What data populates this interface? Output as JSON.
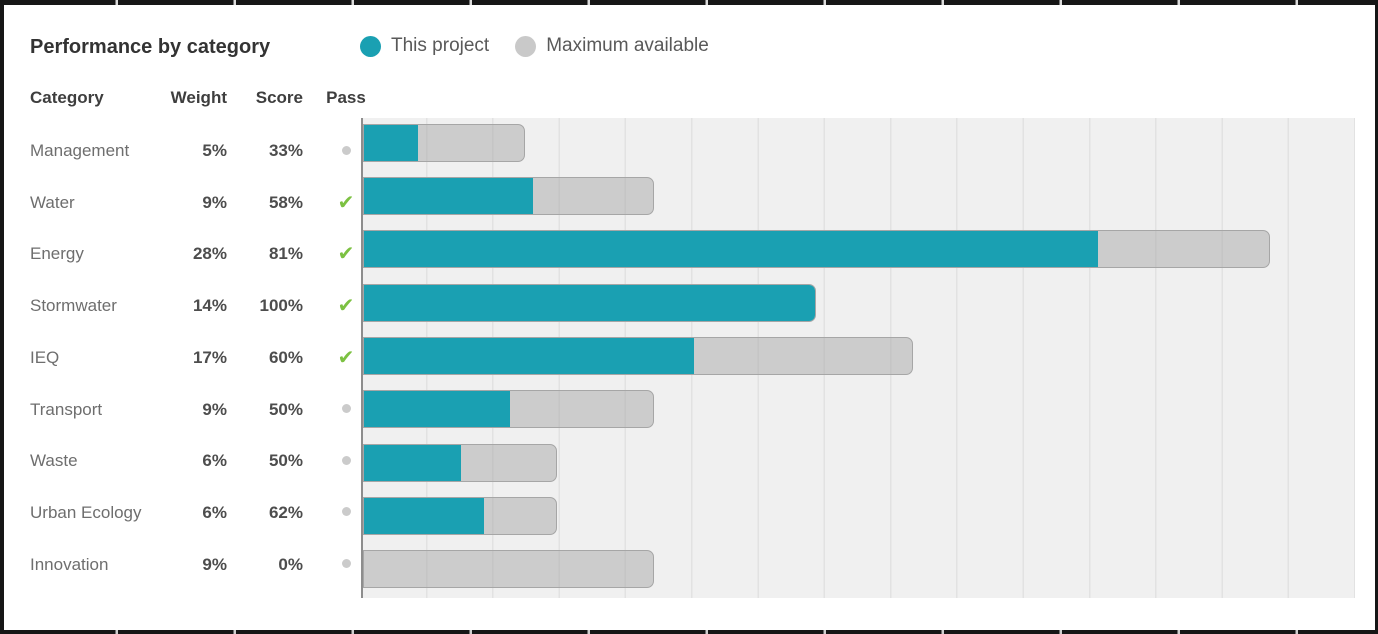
{
  "title": "Performance by category",
  "legend": {
    "this_project": {
      "label": "This project",
      "color": "#1aa0b2"
    },
    "maximum_available": {
      "label": "Maximum available",
      "color": "#c9c9c9"
    }
  },
  "table": {
    "headers": {
      "category": "Category",
      "weight": "Weight",
      "score": "Score",
      "pass": "Pass"
    }
  },
  "icons": {
    "pass_check": "✔"
  },
  "status_colors": {
    "pass_check_green": "#7cc142",
    "fail_dot_gray": "#cbcbcb"
  },
  "chart_data": {
    "type": "bar",
    "orientation": "horizontal",
    "title": "Performance by category",
    "description": "Each row: total bar length = category weight (%); teal segment = score achieved (% of weight); gray segment = remaining maximum available",
    "axis": {
      "max_weight_pct": 30.7,
      "gridline_every_weight_pct": 2,
      "grid": true,
      "tick_labels": "none"
    },
    "legend_entries": [
      "This project",
      "Maximum available"
    ],
    "legend_position": "top",
    "categories": [
      "Management",
      "Water",
      "Energy",
      "Stormwater",
      "IEQ",
      "Transport",
      "Waste",
      "Urban Ecology",
      "Innovation"
    ],
    "rows": [
      {
        "category": "Management",
        "weight_pct": 5,
        "score_pct": 33,
        "pass": false
      },
      {
        "category": "Water",
        "weight_pct": 9,
        "score_pct": 58,
        "pass": true
      },
      {
        "category": "Energy",
        "weight_pct": 28,
        "score_pct": 81,
        "pass": true
      },
      {
        "category": "Stormwater",
        "weight_pct": 14,
        "score_pct": 100,
        "pass": true
      },
      {
        "category": "IEQ",
        "weight_pct": 17,
        "score_pct": 60,
        "pass": true
      },
      {
        "category": "Transport",
        "weight_pct": 9,
        "score_pct": 50,
        "pass": false
      },
      {
        "category": "Waste",
        "weight_pct": 6,
        "score_pct": 50,
        "pass": false
      },
      {
        "category": "Urban Ecology",
        "weight_pct": 6,
        "score_pct": 62,
        "pass": false
      },
      {
        "category": "Innovation",
        "weight_pct": 9,
        "score_pct": 0,
        "pass": false
      }
    ],
    "colors": {
      "this_project": "#1aa0b2",
      "maximum_available": "#c9c9c9"
    }
  }
}
